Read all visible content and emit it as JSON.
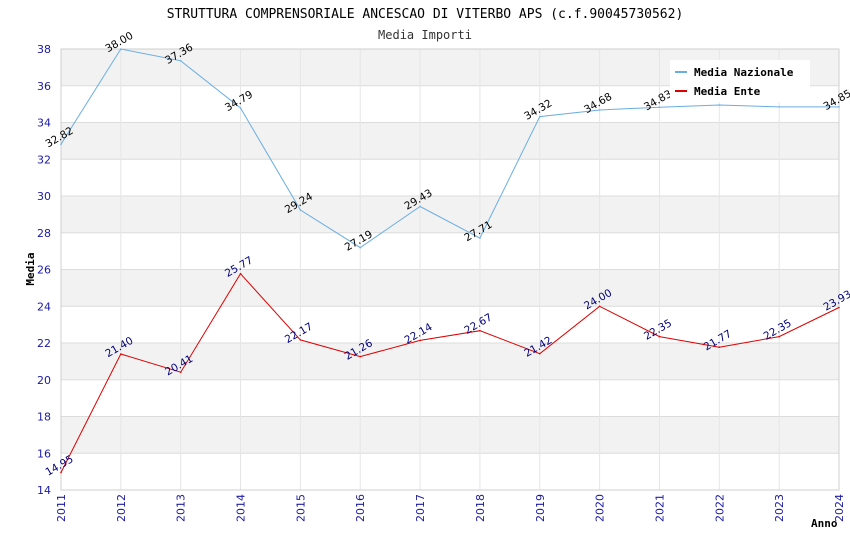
{
  "chart_data": {
    "type": "line",
    "title": "STRUTTURA COMPRENSORIALE ANCESCAO DI VITERBO APS (c.f.90045730562)",
    "subtitle": "Media Importi",
    "xlabel": "Anno",
    "ylabel": "Media",
    "ylim": [
      14,
      38
    ],
    "yticks": [
      "14",
      "16",
      "18",
      "20",
      "22",
      "24",
      "26",
      "28",
      "30",
      "32",
      "34",
      "36",
      "38"
    ],
    "x": [
      "2011",
      "2012",
      "2013",
      "2014",
      "2015",
      "2016",
      "2017",
      "2018",
      "2019",
      "2020",
      "2021",
      "2022",
      "2023",
      "2024"
    ],
    "grid": true,
    "legend": "top-right",
    "series": [
      {
        "name": "Media Nazionale",
        "color": "#6aaee0",
        "label_color": "#000000",
        "values": [
          32.82,
          38.0,
          37.36,
          34.79,
          29.24,
          27.19,
          29.43,
          27.71,
          34.32,
          34.68,
          34.83,
          34.95,
          34.85,
          34.85
        ],
        "labels": [
          "32.82",
          "38.00",
          "37.36",
          "34.79",
          "29.24",
          "27.19",
          "29.43",
          "27.71",
          "34.32",
          "34.68",
          "34.83",
          "",
          "",
          "34.85"
        ]
      },
      {
        "name": "Media Ente",
        "color": "#dd0000",
        "label_color": "#00007a",
        "values": [
          14.95,
          21.4,
          20.41,
          25.77,
          22.17,
          21.26,
          22.14,
          22.67,
          21.42,
          24.0,
          22.35,
          21.77,
          22.35,
          23.93
        ],
        "labels": [
          "14.95",
          "21.40",
          "20.41",
          "25.77",
          "22.17",
          "21.26",
          "22.14",
          "22.67",
          "21.42",
          "24.00",
          "22.35",
          "21.77",
          "22.35",
          "23.93"
        ]
      }
    ]
  }
}
